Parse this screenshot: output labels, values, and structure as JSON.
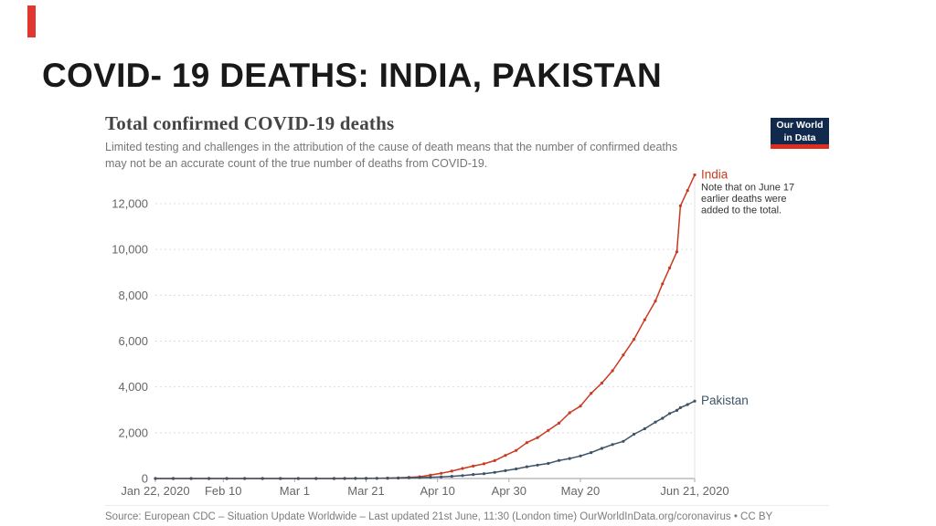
{
  "slide": {
    "title": "COVID- 19 DEATHS: INDIA, PAKISTAN",
    "accent_color": "#e0372e"
  },
  "chart": {
    "title": "Total confirmed COVID-19 deaths",
    "subtitle_lines": [
      "Limited testing and challenges in the attribution of the cause of death means that the number of confirmed deaths",
      "may not be an accurate count of the true number of deaths from COVID-19."
    ],
    "logo": {
      "line1": "Our World",
      "line2": "in Data"
    },
    "annotation": [
      "Note that on June 17",
      "earlier deaths were",
      "added to the total."
    ],
    "source": "Source: European CDC – Situation Update Worldwide – Last updated 21st June, 11:30 (London time) OurWorldInData.org/coronavirus • CC BY"
  },
  "chart_data": {
    "type": "line",
    "title": "Total confirmed COVID-19 deaths",
    "xlabel": "",
    "ylabel": "",
    "ylim": [
      0,
      13500
    ],
    "grid": "dashed horizontal",
    "legend_position": "end-of-line labels",
    "x_unit": "days since Jan 22, 2020",
    "x_ticks": [
      {
        "label": "Jan 22, 2020",
        "day": 0
      },
      {
        "label": "Feb 10",
        "day": 19
      },
      {
        "label": "Mar 1",
        "day": 39
      },
      {
        "label": "Mar 21",
        "day": 59
      },
      {
        "label": "Apr 10",
        "day": 79
      },
      {
        "label": "Apr 30",
        "day": 99
      },
      {
        "label": "May 20",
        "day": 119
      },
      {
        "label": "Jun 21, 2020",
        "day": 151
      }
    ],
    "y_ticks": [
      {
        "value": 0,
        "label": "0"
      },
      {
        "value": 2000,
        "label": "2,000"
      },
      {
        "value": 4000,
        "label": "4,000"
      },
      {
        "value": 6000,
        "label": "6,000"
      },
      {
        "value": 8000,
        "label": "8,000"
      },
      {
        "value": 10000,
        "label": "10,000"
      },
      {
        "value": 12000,
        "label": "12,000"
      }
    ],
    "x_days": [
      0,
      5,
      10,
      15,
      20,
      25,
      30,
      35,
      40,
      45,
      50,
      53,
      56,
      59,
      62,
      65,
      68,
      71,
      74,
      77,
      80,
      83,
      86,
      89,
      92,
      95,
      98,
      101,
      104,
      107,
      110,
      113,
      116,
      119,
      122,
      125,
      128,
      131,
      134,
      137,
      140,
      142,
      144,
      146,
      147,
      149,
      151
    ],
    "series": [
      {
        "name": "India",
        "color": "#c93a20",
        "values": [
          0,
          0,
          0,
          0,
          0,
          0,
          0,
          0,
          0,
          0,
          1,
          2,
          3,
          4,
          9,
          19,
          29,
          50,
          77,
          149,
          226,
          324,
          437,
          543,
          640,
          780,
          1007,
          1223,
          1568,
          1785,
          2101,
          2415,
          2872,
          3163,
          3720,
          4167,
          4706,
          5394,
          6075,
          6929,
          7745,
          8498,
          9195,
          9900,
          11903,
          12573,
          13254
        ]
      },
      {
        "name": "Pakistan",
        "color": "#3d5468",
        "values": [
          0,
          0,
          0,
          0,
          0,
          0,
          0,
          0,
          0,
          0,
          0,
          0,
          2,
          3,
          7,
          11,
          21,
          31,
          41,
          57,
          73,
          96,
          128,
          176,
          212,
          269,
          343,
          417,
          514,
          585,
          659,
          790,
          873,
          985,
          1133,
          1317,
          1483,
          1621,
          1935,
          2172,
          2463,
          2632,
          2839,
          2975,
          3093,
          3229,
          3382
        ]
      }
    ]
  }
}
